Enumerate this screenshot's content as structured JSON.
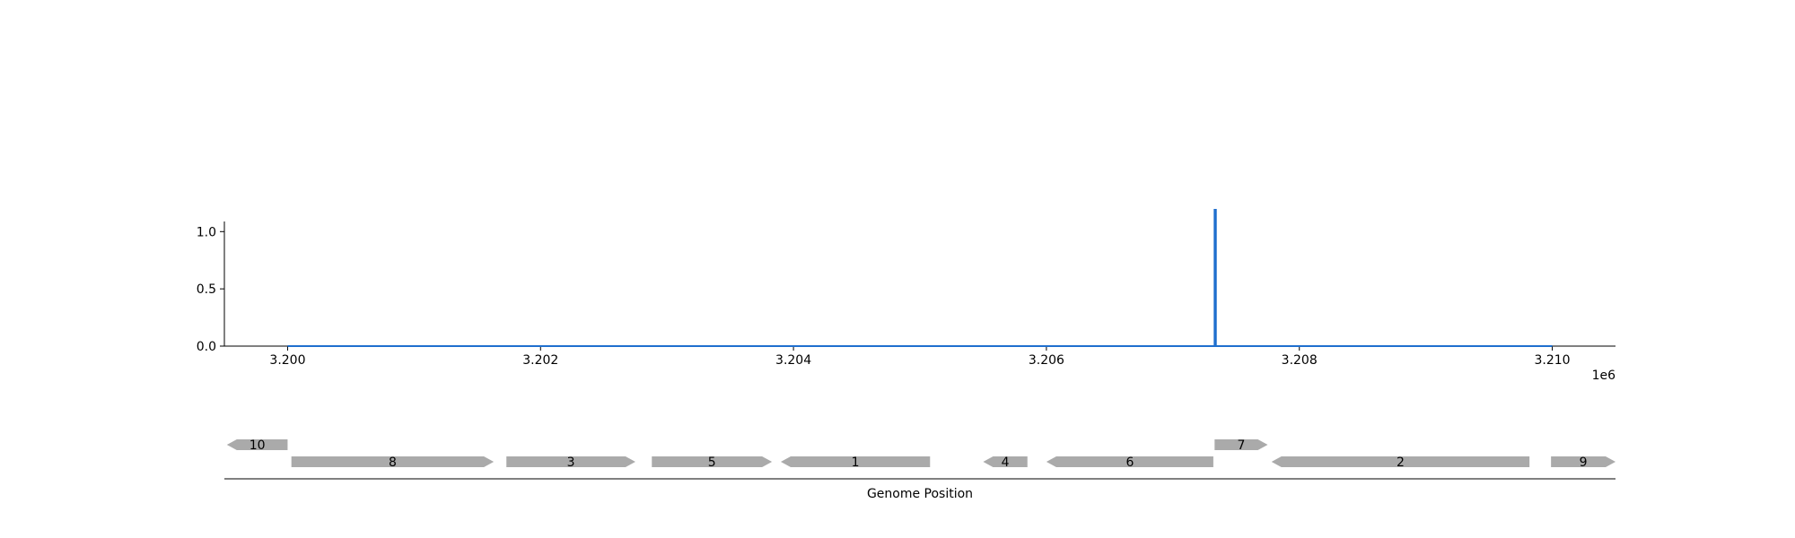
{
  "chart_data": [
    {
      "type": "line",
      "title": "",
      "xlabel": "",
      "ylabel": "",
      "x_offset_label": "1e6",
      "xlim": [
        3199500,
        3210500
      ],
      "ylim": [
        0,
        1.3
      ],
      "x_ticks": [
        3200000,
        3202000,
        3204000,
        3206000,
        3208000,
        3210000
      ],
      "x_tick_labels": [
        "3.200",
        "3.202",
        "3.204",
        "3.206",
        "3.208",
        "3.210"
      ],
      "y_ticks": [
        0,
        0.5,
        1.0
      ],
      "y_tick_labels": [
        "0.0",
        "0.5",
        "1.0"
      ],
      "grid": false,
      "series": [
        {
          "color": "#1f6fce",
          "x": [
            3200000,
            3207330,
            3207330,
            3207340,
            3207340,
            3210000
          ],
          "y": [
            0,
            0,
            1.19,
            1.19,
            0,
            0
          ]
        }
      ]
    },
    {
      "type": "gene-track",
      "xlabel": "Genome Position",
      "xlim": [
        3199500,
        3210500
      ],
      "gene_color": "#aaaaaa",
      "genes": [
        {
          "label": "10",
          "start": 3199520,
          "end": 3200000,
          "strand": -1,
          "row": 1
        },
        {
          "label": "8",
          "start": 3200030,
          "end": 3201630,
          "strand": 1,
          "row": 0
        },
        {
          "label": "3",
          "start": 3201730,
          "end": 3202750,
          "strand": 1,
          "row": 0
        },
        {
          "label": "5",
          "start": 3202880,
          "end": 3203830,
          "strand": 1,
          "row": 0
        },
        {
          "label": "1",
          "start": 3203900,
          "end": 3205080,
          "strand": -1,
          "row": 0
        },
        {
          "label": "4",
          "start": 3205500,
          "end": 3205850,
          "strand": -1,
          "row": 0
        },
        {
          "label": "6",
          "start": 3206000,
          "end": 3207320,
          "strand": -1,
          "row": 0
        },
        {
          "label": "7",
          "start": 3207330,
          "end": 3207750,
          "strand": 1,
          "row": 1
        },
        {
          "label": "2",
          "start": 3207780,
          "end": 3209820,
          "strand": -1,
          "row": 0
        },
        {
          "label": "9",
          "start": 3209990,
          "end": 3210500,
          "strand": 1,
          "row": 0
        }
      ]
    }
  ]
}
